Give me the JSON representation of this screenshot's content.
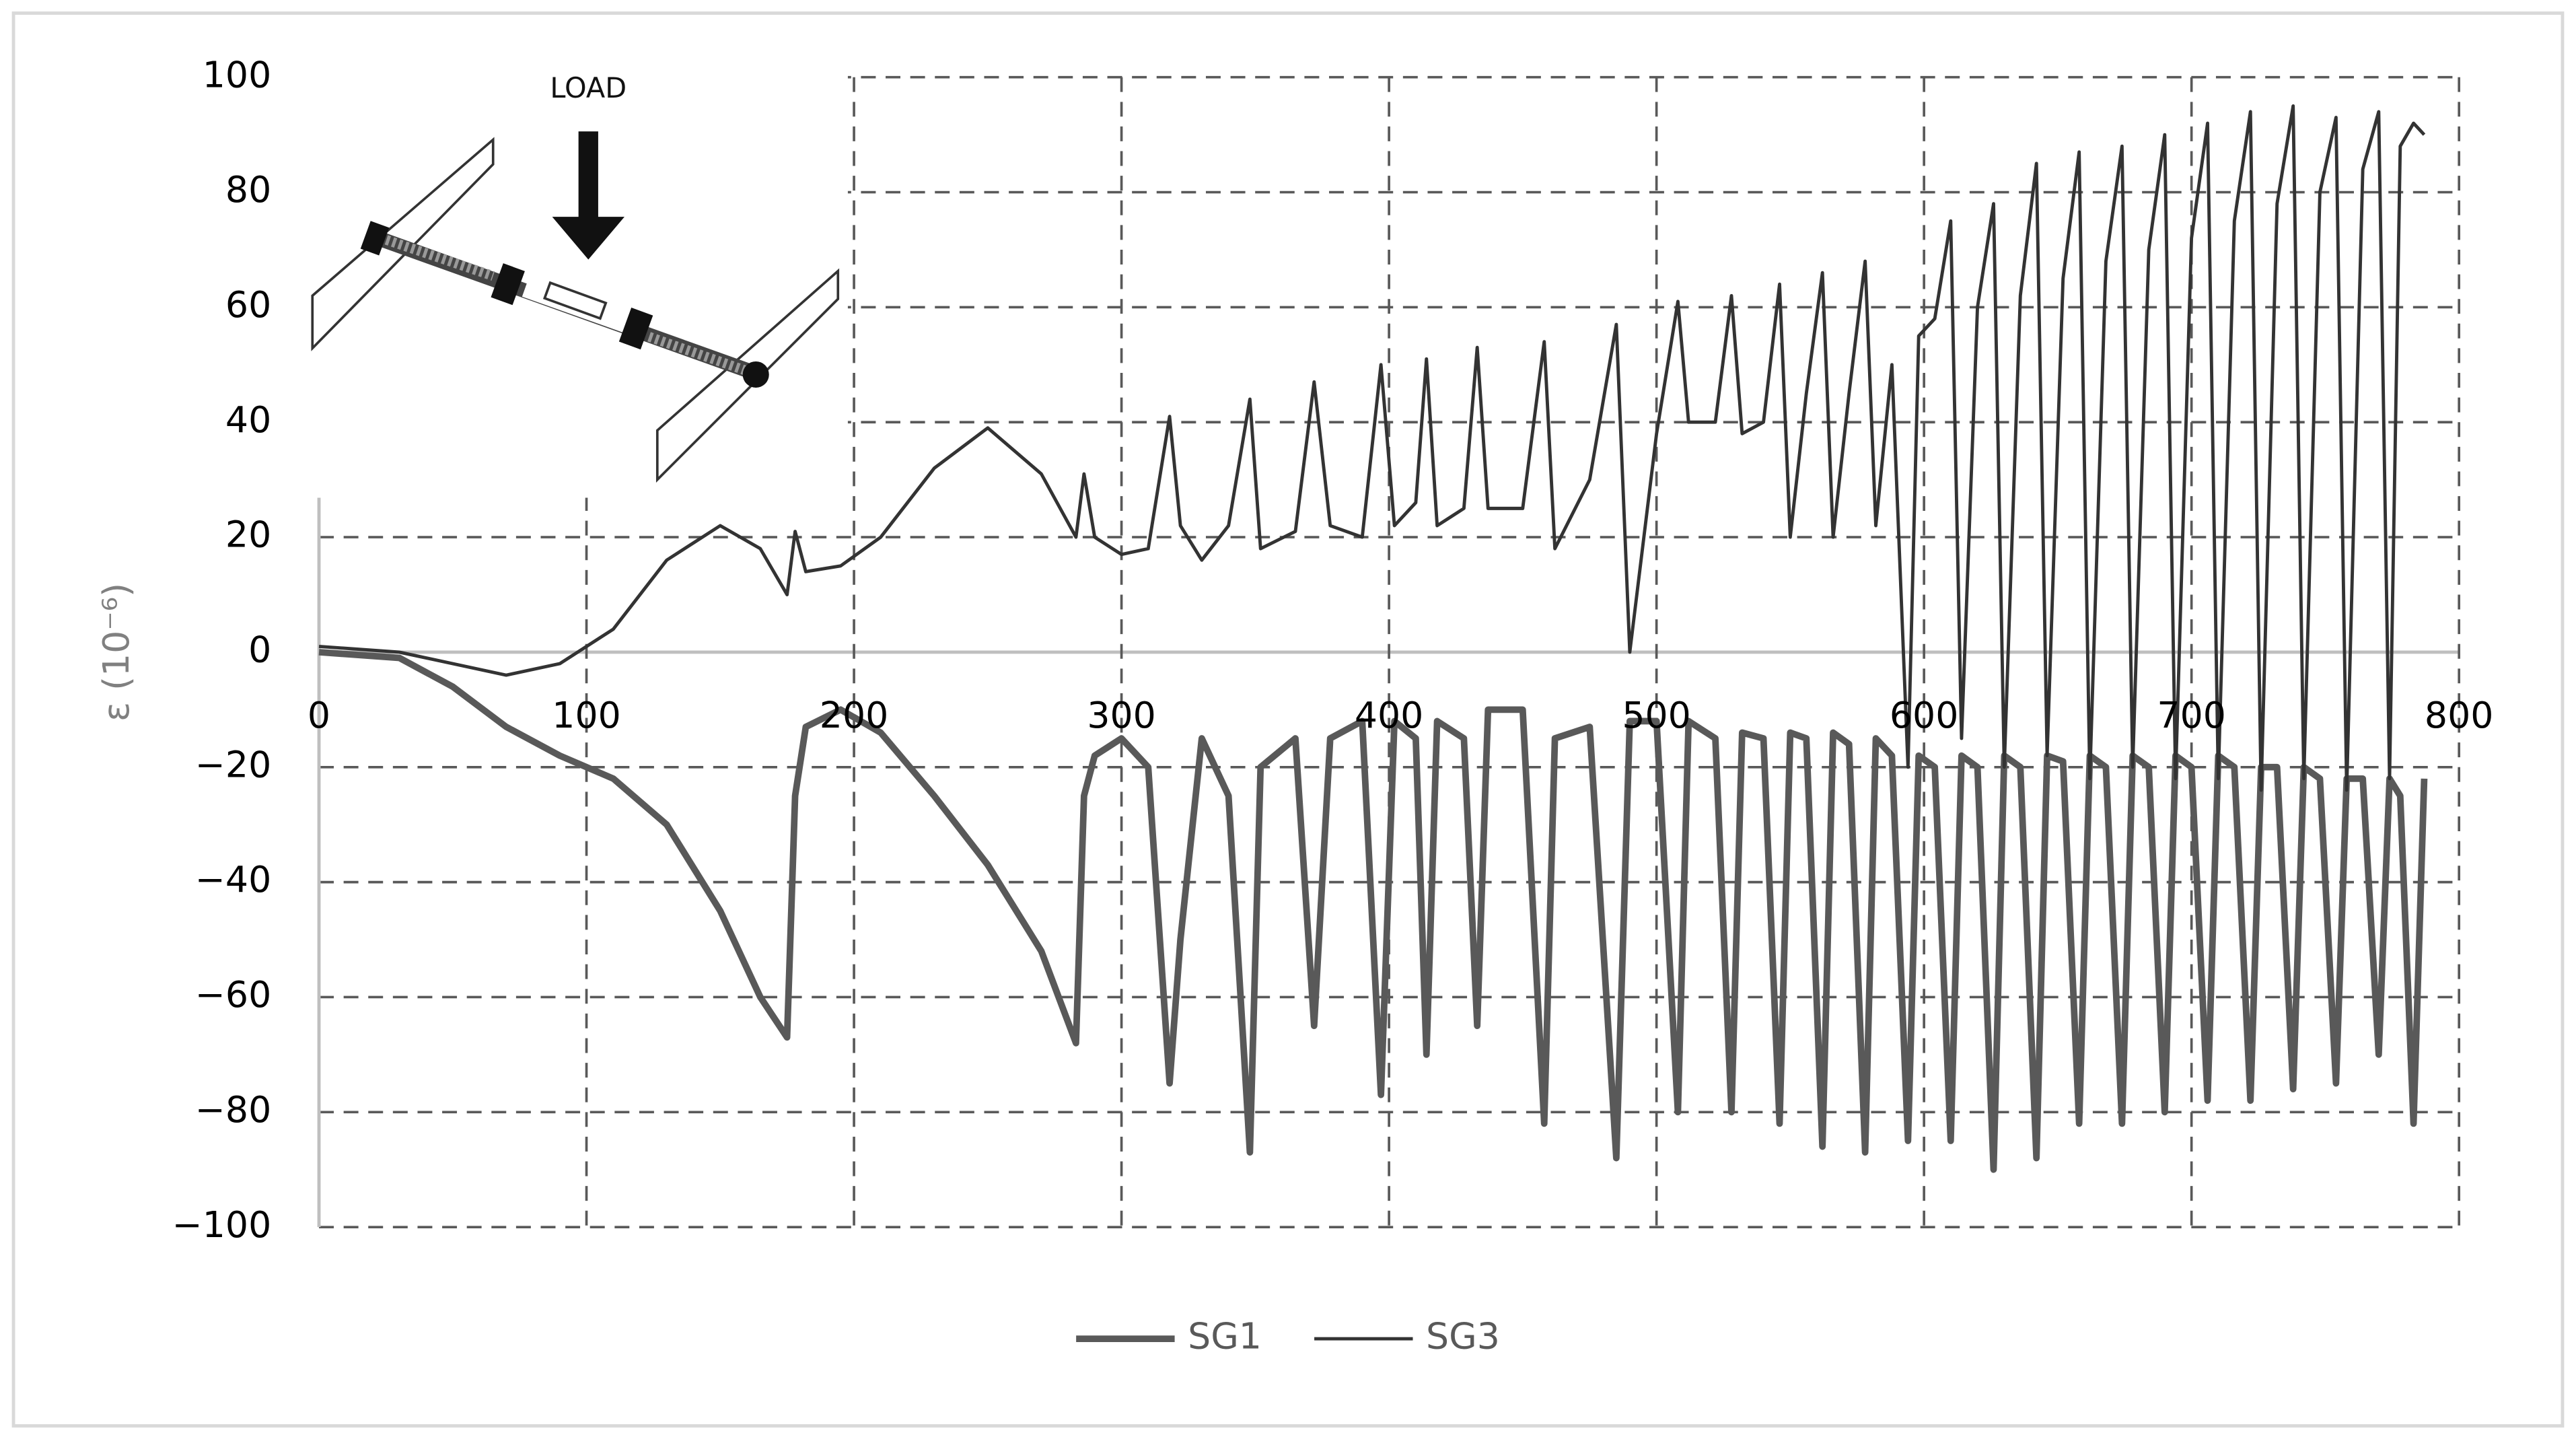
{
  "chart_data": {
    "type": "line",
    "y_label": "ε (10⁻⁶)",
    "annotation": "LOAD",
    "xlim": [
      0,
      800
    ],
    "xticks": [
      0,
      100,
      200,
      300,
      400,
      500,
      600,
      700,
      800
    ],
    "ylim": [
      -100,
      100
    ],
    "yticks": [
      {
        "value": -100,
        "label": "−100"
      },
      {
        "value": -80,
        "label": "−80"
      },
      {
        "value": -60,
        "label": "−60"
      },
      {
        "value": -40,
        "label": "−40"
      },
      {
        "value": -20,
        "label": "−20"
      },
      0,
      20,
      40,
      60,
      80,
      100
    ],
    "grid": true,
    "x": [
      0,
      30,
      50,
      70,
      90,
      110,
      130,
      150,
      165,
      175,
      178,
      182,
      195,
      210,
      230,
      250,
      270,
      283,
      286,
      290,
      300,
      310,
      318,
      322,
      330,
      340,
      348,
      352,
      365,
      372,
      378,
      390,
      397,
      402,
      410,
      414,
      418,
      428,
      433,
      437,
      450,
      458,
      462,
      475,
      485,
      490,
      500,
      508,
      512,
      522,
      528,
      532,
      540,
      546,
      550,
      556,
      562,
      566,
      572,
      578,
      582,
      588,
      594,
      598,
      604,
      610,
      614,
      620,
      626,
      630,
      636,
      642,
      646,
      652,
      658,
      662,
      668,
      674,
      678,
      684,
      690,
      694,
      700,
      706,
      710,
      716,
      722,
      726,
      732,
      738,
      742,
      748,
      754,
      758,
      764,
      770,
      774,
      778,
      783,
      787
    ],
    "series": [
      {
        "name": "SG1",
        "color": "#595959",
        "line_width": 4,
        "values": [
          0,
          -1,
          -6,
          -13,
          -18,
          -22,
          -30,
          -45,
          -60,
          -67,
          -25,
          -13,
          -10,
          -14,
          -25,
          -37,
          -52,
          -68,
          -25,
          -18,
          -15,
          -20,
          -75,
          -50,
          -15,
          -25,
          -87,
          -20,
          -15,
          -65,
          -15,
          -12,
          -77,
          -12,
          -15,
          -70,
          -12,
          -15,
          -65,
          -10,
          -10,
          -82,
          -15,
          -13,
          -88,
          -12,
          -12,
          -80,
          -12,
          -15,
          -80,
          -14,
          -15,
          -82,
          -14,
          -15,
          -86,
          -14,
          -16,
          -87,
          -15,
          -18,
          -85,
          -18,
          -20,
          -85,
          -18,
          -20,
          -90,
          -18,
          -20,
          -88,
          -18,
          -19,
          -82,
          -18,
          -20,
          -82,
          -18,
          -20,
          -80,
          -18,
          -20,
          -78,
          -18,
          -20,
          -78,
          -20,
          -20,
          -76,
          -20,
          -22,
          -75,
          -22,
          -22,
          -70,
          -22,
          -25,
          -82,
          -22
        ]
      },
      {
        "name": "SG3",
        "color": "#333333",
        "line_width": 2,
        "values": [
          1,
          0,
          -2,
          -4,
          -2,
          4,
          16,
          22,
          18,
          10,
          21,
          14,
          15,
          20,
          32,
          39,
          31,
          20,
          31,
          20,
          17,
          18,
          41,
          22,
          16,
          22,
          44,
          18,
          21,
          47,
          22,
          20,
          50,
          22,
          26,
          51,
          22,
          25,
          53,
          25,
          25,
          54,
          18,
          30,
          57,
          0,
          38,
          61,
          40,
          40,
          62,
          38,
          40,
          64,
          20,
          45,
          66,
          20,
          45,
          68,
          22,
          50,
          -20,
          55,
          58,
          75,
          -15,
          60,
          78,
          -20,
          62,
          85,
          -18,
          65,
          87,
          -22,
          68,
          88,
          -20,
          70,
          90,
          -22,
          72,
          92,
          -22,
          75,
          94,
          -24,
          78,
          95,
          -22,
          80,
          93,
          -24,
          84,
          94,
          -22,
          88,
          92,
          90
        ]
      }
    ]
  }
}
